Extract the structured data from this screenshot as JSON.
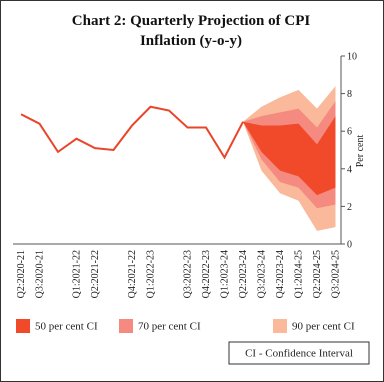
{
  "chart_data": {
    "type": "fan",
    "title": "Chart 2: Quarterly Projection of CPI Inflation (y-o-y)",
    "ylabel": "Per cent",
    "note": "CI - Confidence Interval",
    "categories": [
      "Q2:2020-21",
      "Q3:2020-21",
      null,
      "Q1:2021-22",
      "Q2:2021-22",
      null,
      "Q4:2021-22",
      "Q1:2022-23",
      null,
      "Q3:2022-23",
      "Q4:2022-23",
      "Q1:2023-24",
      "Q2:2023-24",
      "Q3:2023-24",
      "Q4:2023-24",
      "Q1:2024-25",
      "Q2:2024-25",
      "Q3:2024-25"
    ],
    "values": [
      6.9,
      6.4,
      4.9,
      5.6,
      5.1,
      5.0,
      6.3,
      7.3,
      7.1,
      6.2,
      6.2,
      4.6,
      6.5,
      null,
      null,
      null,
      null,
      null
    ],
    "color": "#e8452a",
    "series": [
      {
        "name": "50 per cent CI",
        "color": "#f04a2a",
        "low": [
          null,
          null,
          null,
          null,
          null,
          null,
          null,
          null,
          null,
          null,
          null,
          null,
          6.5,
          4.9,
          3.9,
          3.6,
          2.6,
          3.0
        ],
        "high": [
          null,
          null,
          null,
          null,
          null,
          null,
          null,
          null,
          null,
          null,
          null,
          null,
          6.5,
          6.3,
          6.3,
          6.4,
          5.3,
          6.8
        ]
      },
      {
        "name": "70 per cent CI",
        "color": "#f58a80",
        "low": [
          null,
          null,
          null,
          null,
          null,
          null,
          null,
          null,
          null,
          null,
          null,
          null,
          6.5,
          4.5,
          3.3,
          3.0,
          1.9,
          2.1
        ],
        "high": [
          null,
          null,
          null,
          null,
          null,
          null,
          null,
          null,
          null,
          null,
          null,
          null,
          6.5,
          6.8,
          7.0,
          7.2,
          6.2,
          7.6
        ]
      },
      {
        "name": "90 per cent CI",
        "color": "#f9b99a",
        "low": [
          null,
          null,
          null,
          null,
          null,
          null,
          null,
          null,
          null,
          null,
          null,
          null,
          6.5,
          3.9,
          2.7,
          2.3,
          0.7,
          0.9
        ],
        "high": [
          null,
          null,
          null,
          null,
          null,
          null,
          null,
          null,
          null,
          null,
          null,
          null,
          6.5,
          7.3,
          7.8,
          8.2,
          7.2,
          8.4
        ]
      }
    ],
    "ylim": [
      0,
      10
    ],
    "yticks": [
      0,
      2,
      4,
      6,
      8,
      10
    ]
  }
}
